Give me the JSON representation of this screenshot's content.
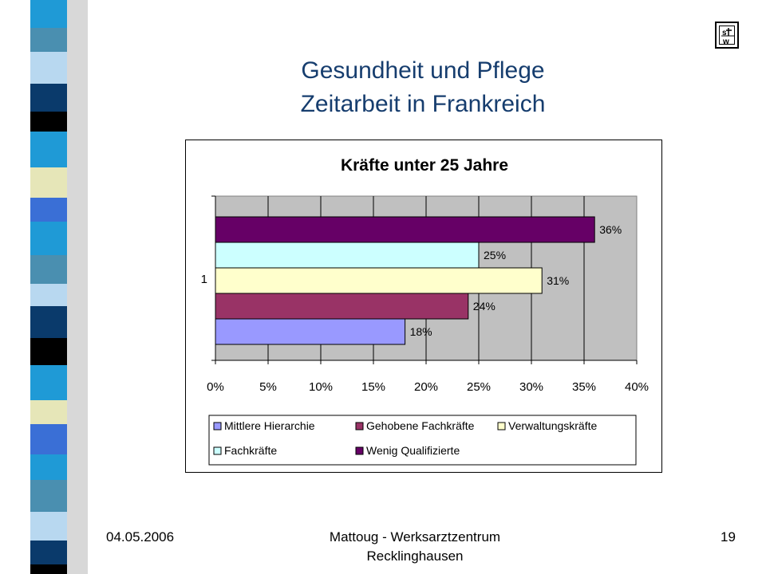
{
  "slide": {
    "title_line1": "Gesundheit und Pflege",
    "title_line2": "Zeitarbeit in Frankreich",
    "date": "04.05.2006",
    "footer_line1": "Mattoug - Werksarztzentrum",
    "footer_line2": "Recklinghausen",
    "page_number": "19",
    "logo_icon": "stw-logo-icon"
  },
  "chart_data": {
    "type": "bar",
    "orientation": "horizontal",
    "title": "Kräfte unter 25 Jahre",
    "categories": [
      "1"
    ],
    "xlim": [
      0,
      40
    ],
    "x_ticks": [
      "0%",
      "5%",
      "10%",
      "15%",
      "20%",
      "25%",
      "30%",
      "35%",
      "40%"
    ],
    "grid": true,
    "legend_position": "bottom",
    "series": [
      {
        "name": "Mittlere Hierarchie",
        "values": [
          18
        ],
        "label": "18%",
        "color": "#9999ff"
      },
      {
        "name": "Gehobene Fachkräfte",
        "values": [
          24
        ],
        "label": "24%",
        "color": "#993366"
      },
      {
        "name": "Verwaltungskräfte",
        "values": [
          31
        ],
        "label": "31%",
        "color": "#ffffcc"
      },
      {
        "name": "Fachkräfte",
        "values": [
          25
        ],
        "label": "25%",
        "color": "#ccffff"
      },
      {
        "name": "Wenig Qualifizierte",
        "values": [
          36
        ],
        "label": "36%",
        "color": "#660066"
      }
    ],
    "legend_order": [
      "Mittlere Hierarchie",
      "Gehobene Fachkräfte",
      "Verwaltungskräfte",
      "Fachkräfte",
      "Wenig Qualifizierte"
    ]
  }
}
